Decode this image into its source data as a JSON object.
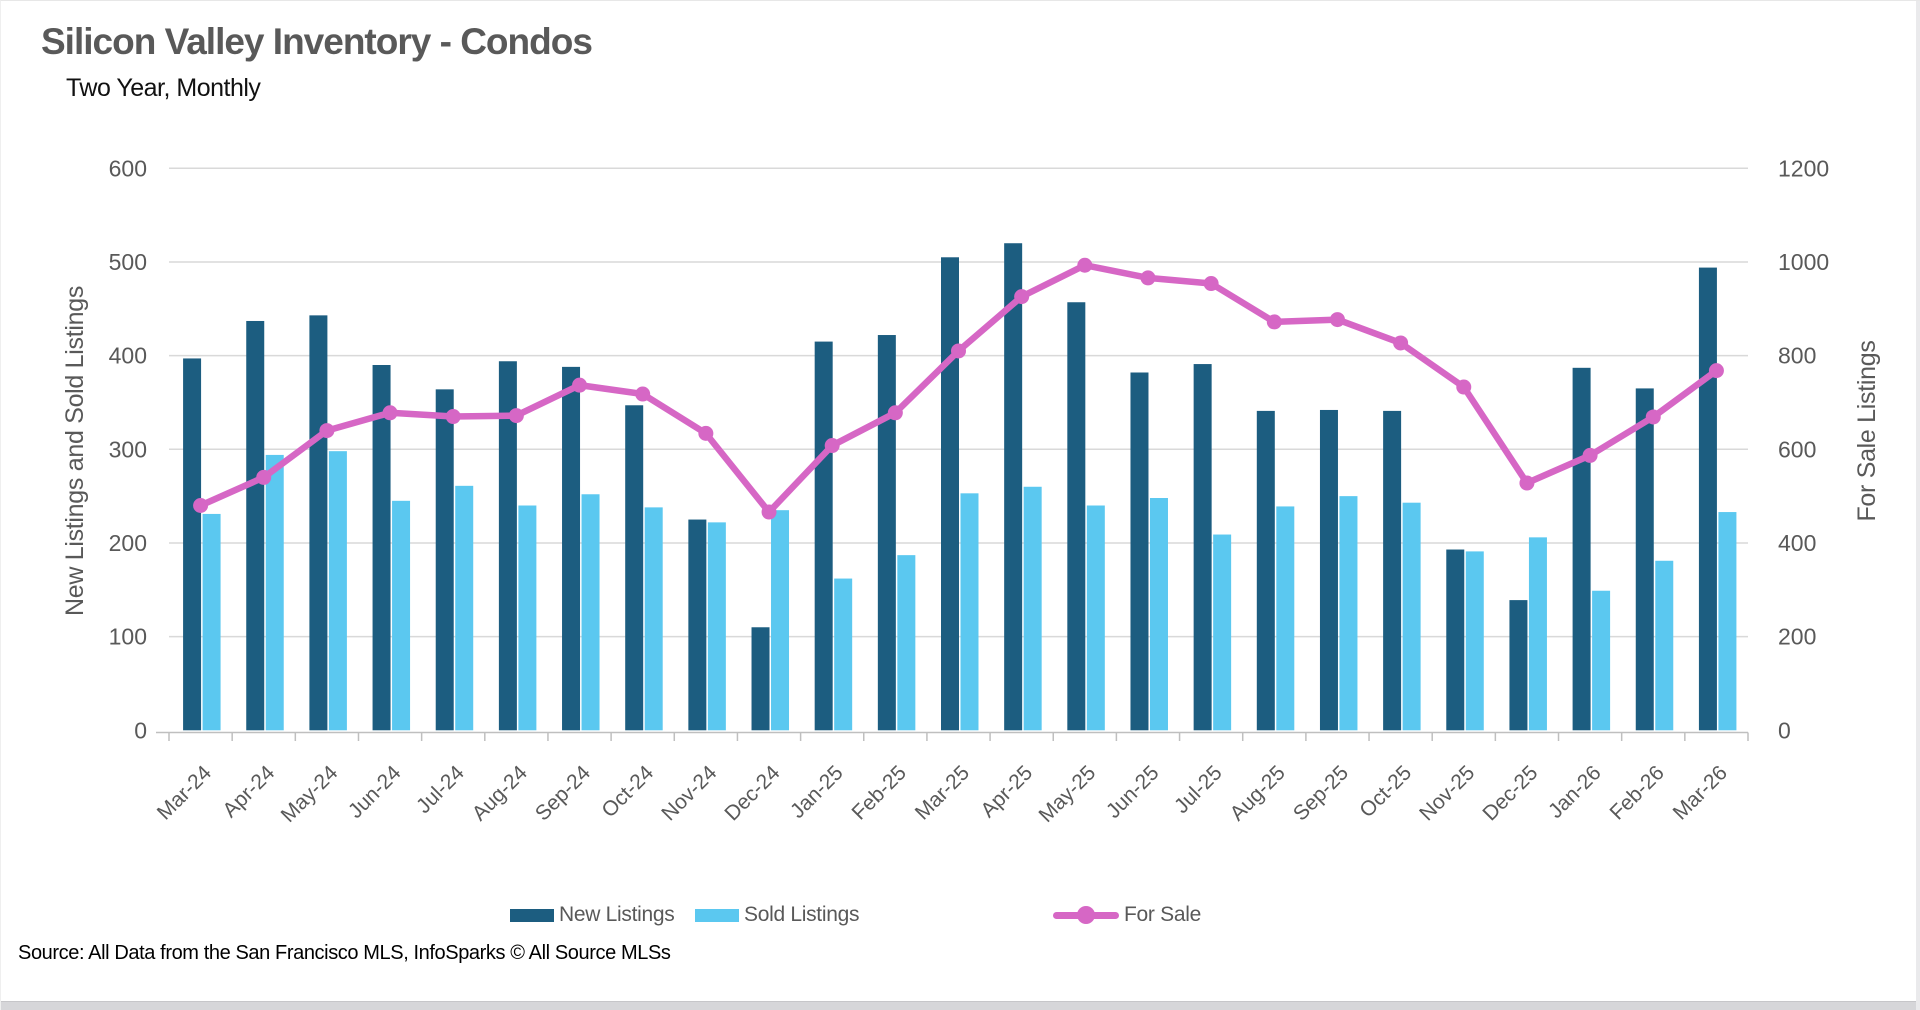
{
  "header": {
    "title": "Silicon Valley Inventory - Condos",
    "subtitle": "Two Year, Monthly"
  },
  "source": "Source: All Data from the San Francisco MLS, InfoSparks © All Source MLSs",
  "colors": {
    "new_listings": "#1C5D80",
    "sold_listings": "#5BC8F0",
    "for_sale": "#D667C5",
    "gridline": "#D9D9D9",
    "axis_line": "#BFBFBF",
    "axis_text": "#595959",
    "title_text": "#595959"
  },
  "chart_data": {
    "type": "bar",
    "subtype": "combo-bar-line",
    "title": "Silicon Valley Inventory - Condos",
    "subtitle": "Two Year, Monthly",
    "grid": true,
    "legend_position": "bottom",
    "categories": [
      "Mar-24",
      "Apr-24",
      "May-24",
      "Jun-24",
      "Jul-24",
      "Aug-24",
      "Sep-24",
      "Oct-24",
      "Nov-24",
      "Dec-24",
      "Jan-25",
      "Feb-25",
      "Mar-25",
      "Apr-25",
      "May-25",
      "Jun-25",
      "Jul-25",
      "Aug-25",
      "Sep-25",
      "Oct-25",
      "Nov-25",
      "Dec-25",
      "Jan-26",
      "Feb-26",
      "Mar-26"
    ],
    "series": [
      {
        "name": "New Listings",
        "type": "bar",
        "axis": "left",
        "color": "#1C5D80",
        "values": [
          397,
          437,
          443,
          390,
          364,
          394,
          388,
          347,
          225,
          110,
          415,
          422,
          505,
          520,
          457,
          382,
          391,
          341,
          342,
          341,
          193,
          139,
          387,
          365,
          494
        ]
      },
      {
        "name": "Sold Listings",
        "type": "bar",
        "axis": "left",
        "color": "#5BC8F0",
        "values": [
          231,
          294,
          298,
          245,
          261,
          240,
          252,
          238,
          222,
          235,
          162,
          187,
          253,
          260,
          240,
          248,
          209,
          239,
          250,
          243,
          191,
          206,
          149,
          181,
          233
        ]
      },
      {
        "name": "For Sale",
        "type": "line",
        "axis": "right",
        "color": "#D667C5",
        "values": [
          480,
          540,
          640,
          678,
          670,
          672,
          737,
          718,
          634,
          466,
          608,
          678,
          810,
          926,
          993,
          966,
          954,
          872,
          877,
          827,
          733,
          528,
          587,
          669,
          768
        ]
      }
    ],
    "left_axis": {
      "title": "New Listings and Sold Listings",
      "min": 0,
      "max": 600,
      "step": 100,
      "tick_labels": [
        "0",
        "100",
        "200",
        "300",
        "400",
        "500",
        "600"
      ]
    },
    "right_axis": {
      "title": "For Sale Listings",
      "min": 0,
      "max": 1200,
      "step": 200,
      "tick_labels": [
        "0",
        "200",
        "400",
        "600",
        "800",
        "1000",
        "1200"
      ]
    }
  }
}
